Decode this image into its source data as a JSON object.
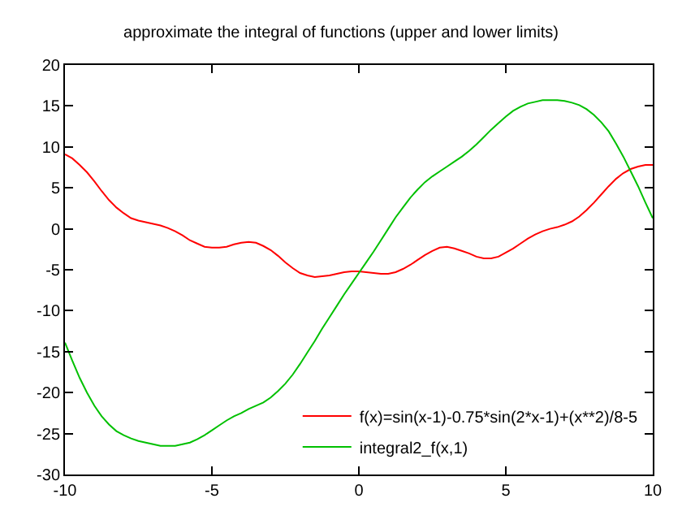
{
  "chart_data": {
    "type": "line",
    "title": "approximate the integral of functions (upper and lower limits)",
    "x": [
      -10.0,
      -9.75,
      -9.5,
      -9.25,
      -9.0,
      -8.75,
      -8.5,
      -8.25,
      -8.0,
      -7.75,
      -7.5,
      -7.25,
      -7.0,
      -6.75,
      -6.5,
      -6.25,
      -6.0,
      -5.75,
      -5.5,
      -5.25,
      -5.0,
      -4.75,
      -4.5,
      -4.25,
      -4.0,
      -3.75,
      -3.5,
      -3.25,
      -3.0,
      -2.75,
      -2.5,
      -2.25,
      -2.0,
      -1.75,
      -1.5,
      -1.25,
      -1.0,
      -0.75,
      -0.5,
      -0.25,
      0.0,
      0.25,
      0.5,
      0.75,
      1.0,
      1.25,
      1.5,
      1.75,
      2.0,
      2.25,
      2.5,
      2.75,
      3.0,
      3.25,
      3.5,
      3.75,
      4.0,
      4.25,
      4.5,
      4.75,
      5.0,
      5.25,
      5.5,
      5.75,
      6.0,
      6.25,
      6.5,
      6.75,
      7.0,
      7.25,
      7.5,
      7.75,
      8.0,
      8.25,
      8.5,
      8.75,
      9.0,
      9.25,
      9.5,
      9.75,
      10.0
    ],
    "series": [
      {
        "name": "f(x)=sin(x-1)-0.75*sin(2*x-1)+(x**2)/8-5",
        "color": "#ff0000",
        "values": [
          9.1,
          8.6,
          7.8,
          6.9,
          5.8,
          4.6,
          3.5,
          2.6,
          1.9,
          1.3,
          1.0,
          0.8,
          0.6,
          0.4,
          0.1,
          -0.3,
          -0.8,
          -1.4,
          -1.8,
          -2.2,
          -2.3,
          -2.3,
          -2.2,
          -1.9,
          -1.7,
          -1.6,
          -1.7,
          -2.1,
          -2.6,
          -3.3,
          -4.1,
          -4.8,
          -5.4,
          -5.7,
          -5.9,
          -5.8,
          -5.7,
          -5.5,
          -5.3,
          -5.2,
          -5.2,
          -5.3,
          -5.4,
          -5.5,
          -5.5,
          -5.3,
          -4.9,
          -4.4,
          -3.8,
          -3.2,
          -2.7,
          -2.3,
          -2.2,
          -2.4,
          -2.7,
          -3.0,
          -3.4,
          -3.6,
          -3.6,
          -3.4,
          -2.9,
          -2.4,
          -1.8,
          -1.2,
          -0.7,
          -0.3,
          0.0,
          0.2,
          0.5,
          0.9,
          1.5,
          2.3,
          3.2,
          4.2,
          5.2,
          6.1,
          6.8,
          7.3,
          7.6,
          7.8,
          7.8
        ]
      },
      {
        "name": "integral2_f(x,1)",
        "color": "#00c000",
        "values": [
          -13.9,
          -16.1,
          -18.2,
          -20.0,
          -21.6,
          -22.9,
          -23.9,
          -24.7,
          -25.2,
          -25.6,
          -25.9,
          -26.1,
          -26.3,
          -26.5,
          -26.5,
          -26.5,
          -26.3,
          -26.1,
          -25.7,
          -25.2,
          -24.6,
          -24.0,
          -23.4,
          -22.9,
          -22.5,
          -22.0,
          -21.6,
          -21.2,
          -20.6,
          -19.8,
          -18.9,
          -17.8,
          -16.5,
          -15.1,
          -13.7,
          -12.2,
          -10.8,
          -9.4,
          -8.0,
          -6.7,
          -5.4,
          -4.1,
          -2.8,
          -1.4,
          0.0,
          1.4,
          2.6,
          3.8,
          4.8,
          5.7,
          6.4,
          7.0,
          7.6,
          8.2,
          8.8,
          9.5,
          10.3,
          11.2,
          12.1,
          12.9,
          13.7,
          14.4,
          14.9,
          15.3,
          15.5,
          15.7,
          15.7,
          15.7,
          15.6,
          15.4,
          15.1,
          14.6,
          13.9,
          13.0,
          11.9,
          10.4,
          8.8,
          7.0,
          5.2,
          3.2,
          1.3
        ]
      }
    ],
    "xlim": [
      -10,
      10
    ],
    "xticks": [
      -10,
      -5,
      0,
      5,
      10
    ],
    "ylim": [
      -30,
      20
    ],
    "yticks": [
      -30,
      -25,
      -20,
      -15,
      -10,
      -5,
      0,
      5,
      10,
      15,
      20
    ],
    "legend": "bottom right",
    "grid": false,
    "line_style": "solid",
    "marker": "none"
  }
}
